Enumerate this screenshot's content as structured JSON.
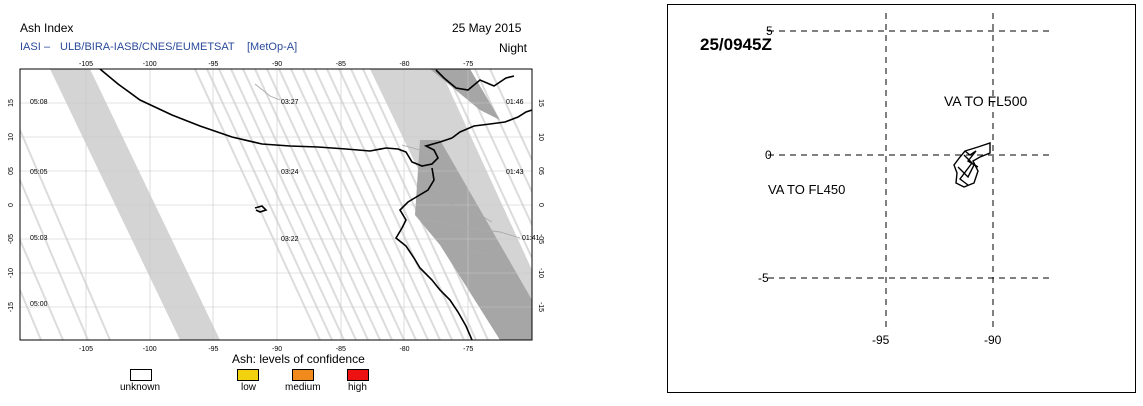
{
  "left_map": {
    "title": "Ash Index",
    "date": "25 May 2015",
    "instrument": "IASI",
    "dash": "–",
    "credits": "ULB/BIRA-IASB/CNES/EUMETSAT",
    "satellite": "[MetOp-A]",
    "mode": "Night",
    "lon_ticks": [
      "-105",
      "-100",
      "-95",
      "-90",
      "-85",
      "-80",
      "-75"
    ],
    "lat_ticks": [
      "15",
      "10",
      "05",
      "0",
      "-05",
      "-10",
      "-15"
    ],
    "pass_times_left": [
      "05:08",
      "05:05",
      "05:03",
      "05:00"
    ],
    "pass_times_center": [
      "03:27",
      "03:24",
      "03:22"
    ],
    "pass_times_right": [
      "01:46",
      "01:43",
      "01:41"
    ],
    "legend": {
      "title": "Ash: levels of confidence",
      "items": [
        {
          "label": "unknown",
          "color": "#ffffff"
        },
        {
          "label": "low",
          "color": "#f2d20f"
        },
        {
          "label": "medium",
          "color": "#f08a1c"
        },
        {
          "label": "high",
          "color": "#ee1111"
        }
      ]
    },
    "colors": {
      "swath": "#d4d4d4",
      "ocean_swath_dark": "#a6a6a6",
      "grid": "#c8c8c8"
    }
  },
  "right_map": {
    "timestamp": "25/0945Z",
    "annotation_upper": "VA TO FL500",
    "annotation_left": "VA TO FL450",
    "y_labels": [
      "5",
      "0",
      "-5"
    ],
    "x_labels": [
      "-95",
      "-90"
    ]
  }
}
